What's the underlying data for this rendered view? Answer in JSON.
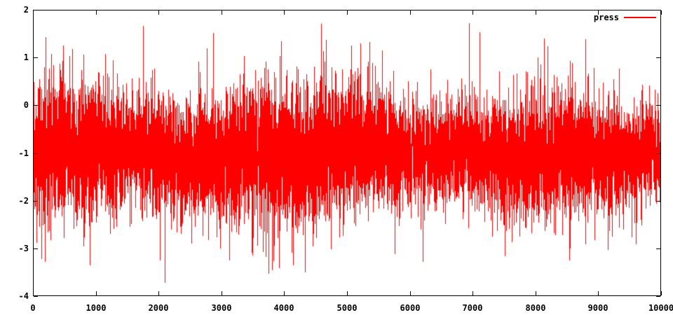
{
  "figure": {
    "background": "#ffffff",
    "border_color": "#000000",
    "text_color": "#000000"
  },
  "legend": {
    "label": "press",
    "line_color": "#ff0000",
    "position": "top-right"
  },
  "chart_data": {
    "type": "line",
    "title": "",
    "xlabel": "",
    "ylabel": "",
    "x_range": [
      0,
      10000
    ],
    "y_range": [
      -4,
      2
    ],
    "x_ticks": [
      0,
      1000,
      2000,
      3000,
      4000,
      5000,
      6000,
      7000,
      8000,
      9000,
      10000
    ],
    "y_ticks": [
      2,
      1,
      0,
      -1,
      -2,
      -3,
      -4
    ],
    "grid": false,
    "legend_position": "top-right",
    "series": [
      {
        "name": "press",
        "color": "#ff0000",
        "style": "lines",
        "points_n": 10000,
        "description": "dense random noise signal, mean about -1, dense band roughly 0 to -2.3, spikes up to ~1.7 and down to ~-3.5",
        "synthesis": {
          "seed": 1337,
          "mean": -1.0,
          "std": 0.62,
          "spike_probability": 0.012,
          "spike_scale": 1.7
        },
        "notable_extremes": [
          {
            "x": 145,
            "y": -3.22
          },
          {
            "x": 480,
            "y": 1.25
          },
          {
            "x": 915,
            "y": -3.35
          },
          {
            "x": 1763,
            "y": 1.65
          },
          {
            "x": 2768,
            "y": 1.18
          },
          {
            "x": 3750,
            "y": -3.52
          },
          {
            "x": 4330,
            "y": -3.49
          },
          {
            "x": 6953,
            "y": 1.72
          },
          {
            "x": 7120,
            "y": 1.53
          },
          {
            "x": 8795,
            "y": 1.37
          },
          {
            "x": 9609,
            "y": -2.9
          }
        ]
      }
    ]
  }
}
